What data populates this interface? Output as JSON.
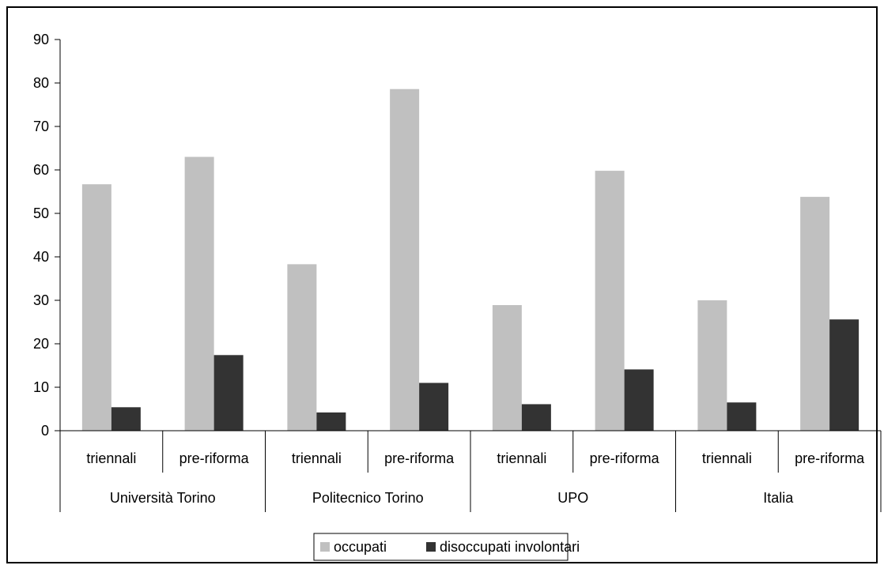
{
  "chart_data": {
    "type": "bar",
    "groups": [
      "Università Torino",
      "Politecnico Torino",
      "UPO",
      "Italia"
    ],
    "subcategories": [
      "triennali",
      "pre-riforma"
    ],
    "categories": [
      "triennali",
      "pre-riforma",
      "triennali",
      "pre-riforma",
      "triennali",
      "pre-riforma",
      "triennali",
      "pre-riforma"
    ],
    "series": [
      {
        "name": "occupati",
        "values": [
          56.7,
          63.0,
          38.3,
          78.6,
          28.9,
          59.8,
          30.0,
          53.8
        ]
      },
      {
        "name": "disoccupati involontari",
        "values": [
          5.4,
          17.4,
          4.2,
          11.0,
          6.1,
          14.1,
          6.5,
          25.6
        ]
      }
    ],
    "title": "",
    "xlabel": "",
    "ylabel": "",
    "ylim": [
      0,
      90
    ],
    "yticks": [
      "0",
      "10",
      "20",
      "30",
      "40",
      "50",
      "60",
      "70",
      "80",
      "90"
    ],
    "grid": false,
    "legend_position": "bottom",
    "colors": {
      "occupati": "#c0c0c0",
      "disoccupati involontari": "#333333"
    }
  }
}
